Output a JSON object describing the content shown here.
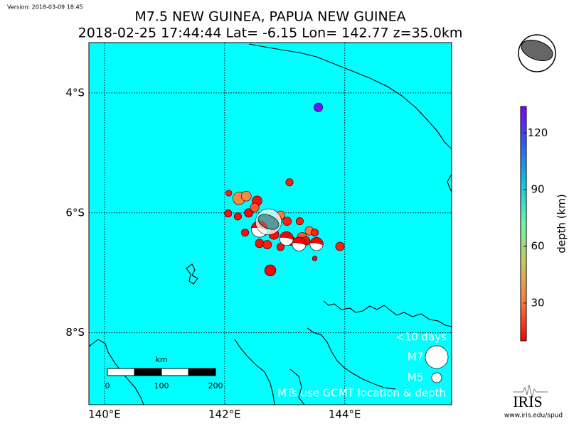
{
  "version": "Version: 2018-03-09 18:45",
  "title": [
    "M7.5 NEW GUINEA, PAPUA NEW GUINEA",
    "2018-02-25 17:44:44 Lat= -6.15 Lon= 142.77 z=35.0km"
  ],
  "map": {
    "background": "#00ffff",
    "lonlim": [
      139.74,
      145.78
    ],
    "latlim": [
      -9.2,
      -3.16
    ],
    "lonticks": [
      {
        "value": 140,
        "label": "140°E"
      },
      {
        "value": 142,
        "label": "142°E"
      },
      {
        "value": 144,
        "label": "144°E"
      }
    ],
    "latticks": [
      {
        "value": -4,
        "label": "4°S"
      },
      {
        "value": -6,
        "label": "6°S"
      },
      {
        "value": -8,
        "label": "8°S"
      }
    ],
    "grid": true
  },
  "events": [
    {
      "lon": 143.56,
      "lat": -4.24,
      "depth": 130,
      "mag": 4.8
    },
    {
      "lon": 143.08,
      "lat": -5.49,
      "depth": 15,
      "mag": 4.6
    },
    {
      "lon": 142.07,
      "lat": -5.67,
      "depth": 15,
      "mag": 4.4
    },
    {
      "lon": 142.24,
      "lat": -5.76,
      "depth": 35,
      "mag": 5.4
    },
    {
      "lon": 142.36,
      "lat": -5.72,
      "depth": 35,
      "mag": 5.0
    },
    {
      "lon": 142.54,
      "lat": -5.8,
      "depth": 12,
      "mag": 5.0
    },
    {
      "lon": 142.06,
      "lat": -6.01,
      "depth": 12,
      "mag": 4.6
    },
    {
      "lon": 142.22,
      "lat": -6.06,
      "depth": 12,
      "mag": 4.6
    },
    {
      "lon": 143.92,
      "lat": -6.56,
      "depth": 15,
      "mag": 4.8
    },
    {
      "lon": 142.76,
      "lat": -6.96,
      "depth": 10,
      "mag": 5.2
    },
    {
      "lon": 143.5,
      "lat": -6.76,
      "depth": 10,
      "mag": 4.2
    },
    {
      "lon": 142.4,
      "lat": -6.0,
      "depth": 10,
      "mag": 4.8
    },
    {
      "lon": 142.5,
      "lat": -5.91,
      "depth": 25,
      "mag": 4.8
    },
    {
      "lon": 142.93,
      "lat": -6.04,
      "depth": 30,
      "mag": 4.8
    },
    {
      "lon": 143.04,
      "lat": -6.14,
      "depth": 15,
      "mag": 4.8
    },
    {
      "lon": 143.25,
      "lat": -6.14,
      "depth": 15,
      "mag": 4.6
    },
    {
      "lon": 143.41,
      "lat": -6.3,
      "depth": 30,
      "mag": 4.8
    },
    {
      "lon": 143.5,
      "lat": -6.33,
      "depth": 15,
      "mag": 4.6
    },
    {
      "lon": 142.34,
      "lat": -6.33,
      "depth": 12,
      "mag": 4.6
    },
    {
      "lon": 142.58,
      "lat": -6.51,
      "depth": 12,
      "mag": 4.8
    },
    {
      "lon": 142.71,
      "lat": -6.53,
      "depth": 15,
      "mag": 4.8
    },
    {
      "lon": 142.93,
      "lat": -6.57,
      "depth": 12,
      "mag": 4.6
    },
    {
      "lon": 143.11,
      "lat": -6.47,
      "depth": 12,
      "mag": 4.8
    },
    {
      "lon": 143.29,
      "lat": -6.41,
      "depth": 25,
      "mag": 5.0
    },
    {
      "lon": 143.35,
      "lat": -6.47,
      "depth": 12,
      "mag": 4.8
    },
    {
      "lon": 142.82,
      "lat": -6.36,
      "depth": 12,
      "mag": 5.0
    },
    {
      "lon": 142.64,
      "lat": -6.3,
      "depth": 30,
      "mag": 5.0
    }
  ],
  "mechanisms": [
    {
      "lon": 142.58,
      "lat": -6.27,
      "mag": 6.0
    },
    {
      "lon": 143.03,
      "lat": -6.43,
      "mag": 5.6
    },
    {
      "lon": 143.24,
      "lat": -6.52,
      "mag": 5.6
    },
    {
      "lon": 143.53,
      "lat": -6.52,
      "mag": 5.5
    },
    {
      "lon": 142.73,
      "lat": -6.15,
      "mag": 7.5
    }
  ],
  "colorbar": {
    "label": "depth (km)",
    "lim": [
      10,
      134
    ],
    "ticks": [
      30,
      60,
      90,
      120
    ],
    "colors": [
      "#ff0000",
      "#ff7a3c",
      "#c8c864",
      "#6cf8a8",
      "#10c8e0",
      "#2c64f0",
      "#8000ff"
    ]
  },
  "legend": {
    "title": "<10 days",
    "sizes": [
      {
        "value": 7,
        "label": "M7"
      },
      {
        "value": 5,
        "label": "M5"
      }
    ],
    "note": "MTs use GCMT location & depth"
  },
  "scalebar": {
    "title": "km",
    "labels": [
      "0",
      "100",
      "200"
    ]
  },
  "logo": {
    "name": "IRIS",
    "url": "www.iris.edu/spud"
  }
}
